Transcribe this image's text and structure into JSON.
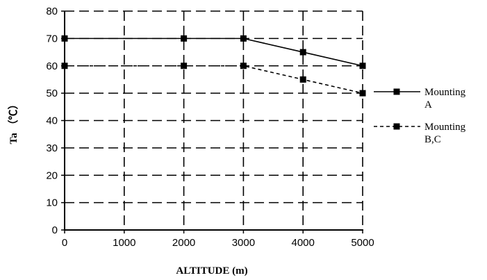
{
  "chart_data": {
    "type": "line",
    "title": "",
    "xlabel": "ALTITUDE (m)",
    "ylabel": "Ta （℃）",
    "xlim": [
      0,
      5000
    ],
    "ylim": [
      0,
      80
    ],
    "xticks": [
      0,
      1000,
      2000,
      3000,
      4000,
      5000
    ],
    "yticks": [
      0,
      10,
      20,
      30,
      40,
      50,
      60,
      70,
      80
    ],
    "grid": true,
    "legend_position": "right",
    "series": [
      {
        "name": "Mounting A",
        "name_lines": [
          "Mounting",
          "A"
        ],
        "line_style": "solid",
        "marker": "square",
        "color": "#000000",
        "x": [
          0,
          2000,
          3000,
          4000,
          5000
        ],
        "y": [
          70,
          70,
          70,
          65,
          60
        ]
      },
      {
        "name": "Mounting B,C",
        "name_lines": [
          "Mounting",
          "B,C"
        ],
        "line_style": "dashed",
        "marker": "square",
        "color": "#000000",
        "x": [
          0,
          2000,
          3000,
          4000,
          5000
        ],
        "y": [
          60,
          60,
          60,
          55,
          50
        ]
      }
    ]
  }
}
